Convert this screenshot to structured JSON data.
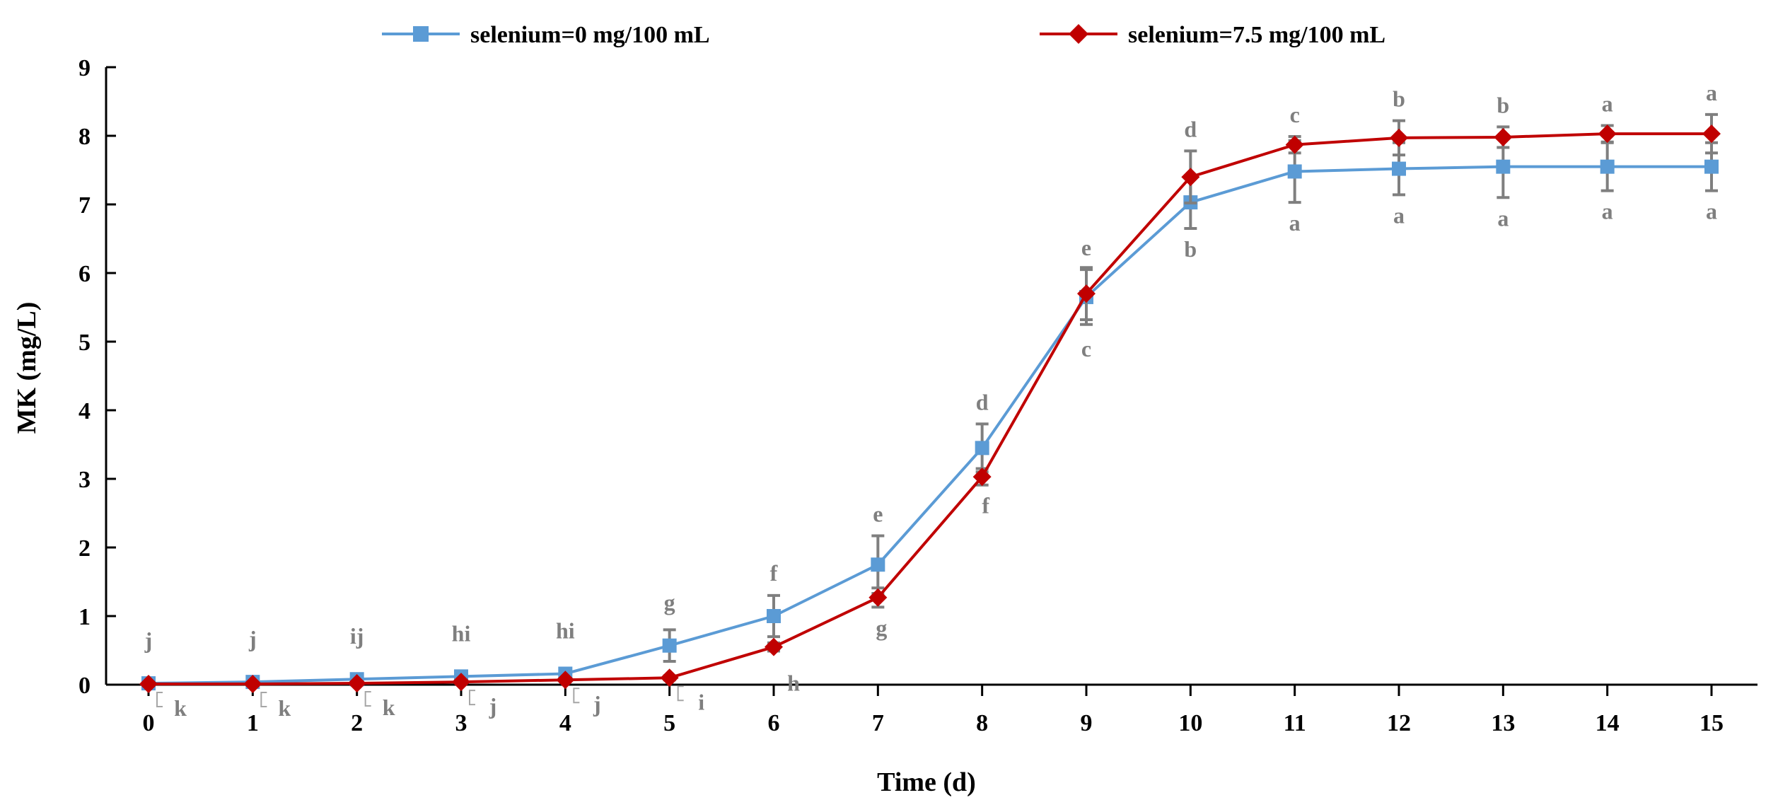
{
  "chart_data": {
    "type": "line",
    "xlabel": "Time (d)",
    "ylabel": "MK (mg/L)",
    "xlim": [
      0,
      15
    ],
    "ylim": [
      0,
      9
    ],
    "x_ticks": [
      "0",
      "1",
      "2",
      "3",
      "4",
      "5",
      "6",
      "7",
      "8",
      "9",
      "10",
      "11",
      "12",
      "13",
      "14",
      "15"
    ],
    "y_ticks": [
      "0",
      "1",
      "2",
      "3",
      "4",
      "5",
      "6",
      "7",
      "8",
      "9"
    ],
    "grid": false,
    "legend_position": "top",
    "x": [
      0,
      1,
      2,
      3,
      4,
      5,
      6,
      7,
      8,
      9,
      10,
      11,
      12,
      13,
      14,
      15
    ],
    "series": [
      {
        "name": "selenium=0 mg/100 mL",
        "color": "#5b9bd5",
        "marker": "square",
        "values": [
          0.02,
          0.04,
          0.08,
          0.12,
          0.16,
          0.57,
          1.0,
          1.75,
          3.45,
          5.65,
          7.03,
          7.48,
          7.52,
          7.55,
          7.55,
          7.55
        ],
        "errors": [
          0.02,
          0.02,
          0.03,
          0.03,
          0.04,
          0.23,
          0.3,
          0.42,
          0.35,
          0.4,
          0.38,
          0.45,
          0.38,
          0.45,
          0.35,
          0.35
        ],
        "sig_labels": [
          "j",
          "j",
          "ij",
          "hi",
          "hi",
          "g",
          "f",
          "e",
          "d",
          "e",
          "b",
          "a",
          "a",
          "a",
          "a",
          "a"
        ]
      },
      {
        "name": "selenium=7.5 mg/100 mL",
        "color": "#c00000",
        "marker": "diamond",
        "values": [
          0.01,
          0.01,
          0.02,
          0.04,
          0.07,
          0.1,
          0.55,
          1.27,
          3.03,
          5.7,
          7.4,
          7.87,
          7.97,
          7.98,
          8.03,
          8.03
        ],
        "errors": [
          0.01,
          0.01,
          0.01,
          0.02,
          0.02,
          0.03,
          0.06,
          0.14,
          0.12,
          0.38,
          0.38,
          0.12,
          0.25,
          0.15,
          0.12,
          0.28
        ],
        "sig_labels": [
          "k",
          "k",
          "k",
          "j",
          "j",
          "i",
          "h",
          "g",
          "f",
          "c",
          "d",
          "c",
          "b",
          "b",
          "a",
          "a"
        ]
      }
    ]
  }
}
